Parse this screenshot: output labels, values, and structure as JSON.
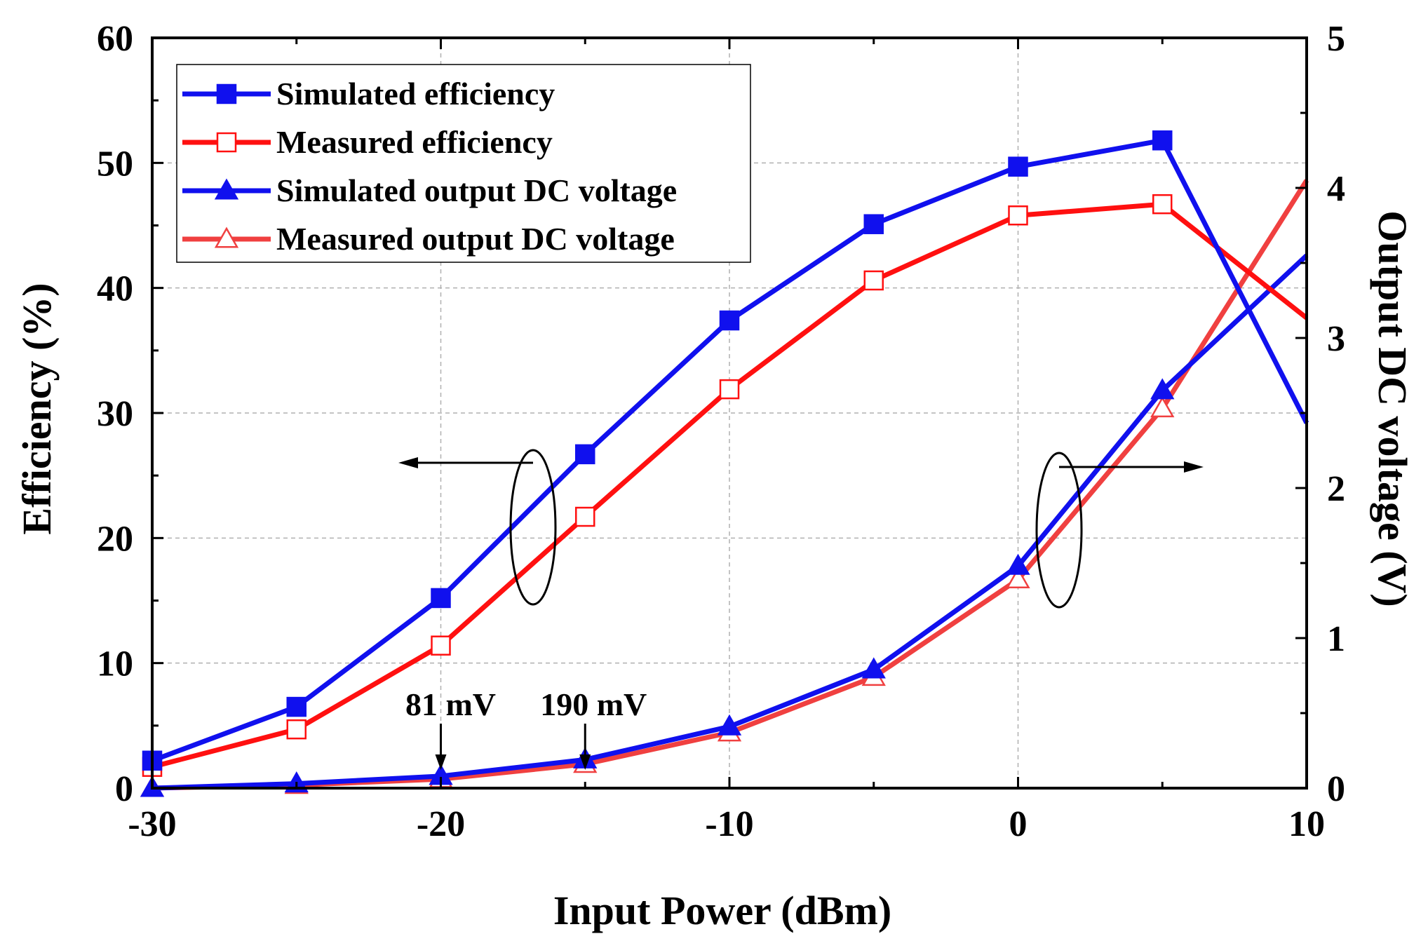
{
  "chart_data": {
    "type": "line",
    "xlabel": "Input Power (dBm)",
    "ylabel": "Efficiency (%)",
    "y2label": "Output DC voltage (V)",
    "xlim": [
      -30,
      10
    ],
    "ylim": [
      0,
      60
    ],
    "y2lim": [
      0,
      5
    ],
    "xticks": [
      -30,
      -20,
      -10,
      0,
      10
    ],
    "yticks": [
      0,
      10,
      20,
      30,
      40,
      50,
      60
    ],
    "y2ticks": [
      0,
      1,
      2,
      3,
      4,
      5
    ],
    "grid": true,
    "legend_position": "top-left",
    "x": [
      -30,
      -25,
      -20,
      -15,
      -10,
      -5,
      0,
      5,
      10
    ],
    "series": [
      {
        "name": "Simulated efficiency",
        "axis": "left",
        "marker": "square-filled",
        "color": "#1010ee",
        "values": [
          2.2,
          6.5,
          15.2,
          26.7,
          37.4,
          45.1,
          49.7,
          51.8,
          29.2
        ]
      },
      {
        "name": "Measured efficiency",
        "axis": "left",
        "marker": "square-open",
        "color": "#ff1010",
        "values": [
          1.7,
          4.7,
          11.4,
          21.7,
          31.9,
          40.6,
          45.8,
          46.7,
          37.6
        ]
      },
      {
        "name": "Simulated output DC voltage",
        "axis": "right",
        "marker": "triangle-filled",
        "color": "#1010ee",
        "values": [
          0.0,
          0.03,
          0.08,
          0.19,
          0.41,
          0.79,
          1.48,
          2.65,
          3.55
        ]
      },
      {
        "name": "Measured output DC voltage",
        "axis": "right",
        "marker": "triangle-open",
        "color": "#f04040",
        "values": [
          0.0,
          0.02,
          0.06,
          0.16,
          0.37,
          0.74,
          1.39,
          2.53,
          4.05
        ]
      }
    ],
    "annotations": [
      {
        "text": "81 mV",
        "x": -20
      },
      {
        "text": "190 mV",
        "x": -15
      }
    ]
  }
}
